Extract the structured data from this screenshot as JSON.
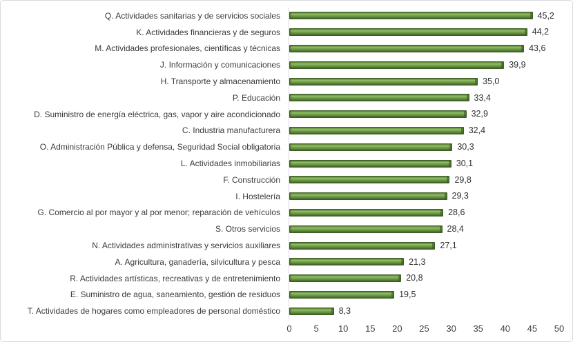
{
  "chart_data": {
    "type": "bar",
    "orientation": "horizontal",
    "title": "",
    "xlabel": "",
    "ylabel": "",
    "xlim": [
      0,
      50
    ],
    "x_ticks": [
      "0",
      "5",
      "10",
      "15",
      "20",
      "25",
      "30",
      "35",
      "40",
      "45",
      "50"
    ],
    "grid": false,
    "legend": null,
    "decimal_separator": ",",
    "categories": [
      "Q. Actividades sanitarias y de servicios sociales",
      "K. Actividades financieras y de seguros",
      "M. Actividades profesionales, científicas y técnicas",
      "J. Información y comunicaciones",
      "H. Transporte y almacenamiento",
      "P. Educación",
      "D. Suministro de energía eléctrica, gas, vapor y aire acondicionado",
      "C. Industria manufacturera",
      "O. Administración Pública y defensa, Seguridad Social obligatoria",
      "L. Actividades inmobiliarias",
      "F. Construcción",
      "I. Hostelería",
      "G. Comercio al por mayor y al por menor; reparación de vehículos",
      "S. Otros servicios",
      "N. Actividades administrativas y servicios auxiliares",
      "A. Agricultura, ganadería, silvicultura y pesca",
      "R. Actividades artísticas, recreativas y de entretenimiento",
      "E. Suministro de agua, saneamiento, gestión de residuos",
      "T. Actividades de hogares como empleadores de personal doméstico"
    ],
    "values": [
      45.2,
      44.2,
      43.6,
      39.9,
      35.0,
      33.4,
      32.9,
      32.4,
      30.3,
      30.1,
      29.8,
      29.3,
      28.6,
      28.4,
      27.1,
      21.3,
      20.8,
      19.5,
      8.3
    ],
    "value_labels": [
      "45,2",
      "44,2",
      "43,6",
      "39,9",
      "35,0",
      "33,4",
      "32,9",
      "32,4",
      "30,3",
      "30,1",
      "29,8",
      "29,3",
      "28,6",
      "28,4",
      "27,1",
      "21,3",
      "20,8",
      "19,5",
      "8,3"
    ],
    "colors": {
      "bar_fill": "#6d9a45",
      "bar_highlight": "#93bf68",
      "bar_border": "#3e5c25",
      "axis_line": "#d9d9d9",
      "frame_border": "#d6dbdf",
      "label_text": "#3a3a3a",
      "tick_text": "#404040",
      "background": "#ffffff"
    }
  }
}
